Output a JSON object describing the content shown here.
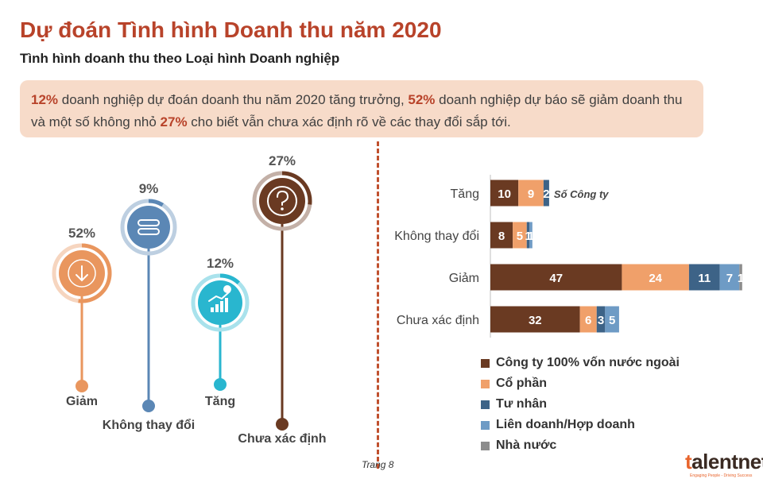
{
  "header": {
    "title": "Dự đoán Tình hình Doanh thu năm 2020",
    "subtitle": "Tình hình doanh thu theo Loại hình Doanh nghiệp"
  },
  "summary": {
    "pct1": "12%",
    "text1": " doanh nghiệp dự đoán doanh thu năm 2020 tăng trưởng, ",
    "pct2": "52%",
    "text2": " doanh nghiệp dự báo sẽ giảm doanh thu và một số không nhỏ ",
    "pct3": "27%",
    "text3": " cho biết vẫn chưa xác định rõ về các thay đổi sắp tới."
  },
  "chart_data": [
    {
      "type": "pie",
      "categories": [
        "Giảm",
        "Không thay đổi",
        "Tăng",
        "Chưa xác định"
      ],
      "values": [
        52,
        9,
        12,
        27
      ],
      "labels": [
        "52%",
        "9%",
        "12%",
        "27%"
      ],
      "colors": [
        "#e9965e",
        "#5b87b5",
        "#29b6cf",
        "#6a3a22"
      ],
      "icons": [
        "arrow-down-icon",
        "equals-icon",
        "growth-chart-icon",
        "question-icon"
      ]
    },
    {
      "type": "bar",
      "orientation": "horizontal",
      "stacked": true,
      "categories": [
        "Tăng",
        "Không thay đổi",
        "Giảm",
        "Chưa xác định"
      ],
      "series": [
        {
          "name": "Công ty 100% vốn nước ngoài",
          "values": [
            10,
            8,
            47,
            32
          ],
          "color": "#6a3a22"
        },
        {
          "name": "Cổ phần",
          "values": [
            9,
            5,
            24,
            6
          ],
          "color": "#f0a06a"
        },
        {
          "name": "Tư nhân",
          "values": [
            2,
            1,
            11,
            3
          ],
          "color": "#3d6387"
        },
        {
          "name": "Liên doanh/Hợp doanh",
          "values": [
            0,
            1,
            7,
            5
          ],
          "color": "#6e9bc5"
        },
        {
          "name": "Nhà nước",
          "values": [
            0,
            0,
            1,
            0
          ],
          "color": "#8c8c8c"
        }
      ],
      "annotation": "Số Công ty",
      "xlim": [
        0,
        90
      ]
    }
  ],
  "footer": {
    "page": "Trang 8"
  },
  "logo": {
    "prefix": "t",
    "name": "alentnet",
    "tagline": "Engaging People - Driving Success"
  }
}
